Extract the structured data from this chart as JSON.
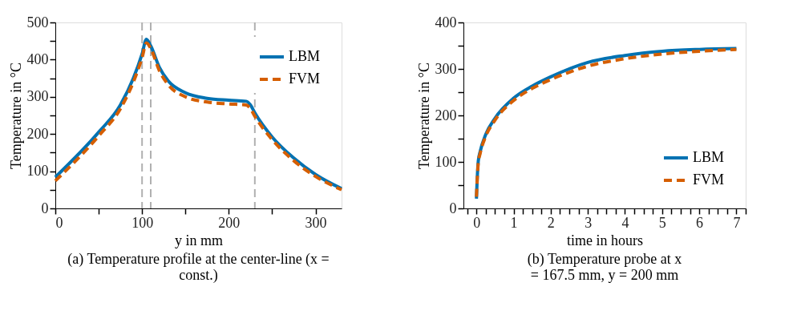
{
  "chart_data": [
    {
      "type": "line",
      "title": "(a) Temperature profile at the center-line (x = const.)",
      "xlabel": "y in mm",
      "ylabel": "Temperature in °C",
      "xlim": [
        0,
        330
      ],
      "ylim": [
        0,
        500
      ],
      "xticks": [
        0,
        {
          "value": 50,
          "label": null
        },
        100,
        {
          "value": 150,
          "label": null
        },
        200,
        {
          "value": 250,
          "label": null
        },
        300
      ],
      "yticks": [
        0,
        {
          "value": 50,
          "label": null
        },
        100,
        {
          "value": 150,
          "label": null
        },
        200,
        {
          "value": 250,
          "label": null
        },
        300,
        {
          "value": 350,
          "label": null
        },
        400,
        {
          "value": 450,
          "label": null
        },
        500
      ],
      "legend": "top right",
      "grid": false,
      "ref_lines": [
        {
          "axis": "x",
          "value": 100,
          "color": "#b0b0b0",
          "line_style": "dashed"
        },
        {
          "axis": "x",
          "value": 110,
          "color": "#b0b0b0",
          "line_style": "dashed"
        },
        {
          "axis": "x",
          "value": 230,
          "color": "#b0b0b0",
          "line_style": "dashed"
        }
      ],
      "series": [
        {
          "name": "LBM",
          "color": "#0072b2",
          "line_style": "solid",
          "x": [
            0,
            50,
            75,
            90,
            100,
            105,
            110,
            120,
            130,
            150,
            175,
            200,
            220,
            225,
            230,
            250,
            275,
            300,
            330
          ],
          "values": [
            84,
            205,
            278,
            350,
            415,
            455,
            437,
            379,
            343,
            311,
            296,
            291,
            288,
            278,
            257,
            192,
            135,
            91,
            53
          ]
        },
        {
          "name": "FVM",
          "color": "#d55e00",
          "line_style": "dashed",
          "x": [
            0,
            50,
            75,
            90,
            100,
            105,
            110,
            120,
            130,
            150,
            175,
            200,
            220,
            225,
            230,
            250,
            275,
            300,
            330
          ],
          "values": [
            74,
            195,
            268,
            340,
            405,
            445,
            430,
            370,
            333,
            300,
            286,
            281,
            278,
            268,
            248,
            185,
            128,
            86,
            50
          ]
        }
      ]
    },
    {
      "type": "line",
      "title": "(b) Temperature probe at x = 167.5 mm, y = 200 mm",
      "xlabel": "time in hours",
      "ylabel": "Temperature in °C",
      "xlim": [
        -0.35,
        7.25
      ],
      "ylim": [
        0,
        400
      ],
      "xticks": [
        {
          "value": -0.25,
          "label": null
        },
        0,
        {
          "value": 0.25,
          "label": null
        },
        {
          "value": 0.5,
          "label": null
        },
        {
          "value": 0.75,
          "label": null
        },
        1,
        {
          "value": 1.25,
          "label": null
        },
        {
          "value": 1.5,
          "label": null
        },
        {
          "value": 1.75,
          "label": null
        },
        2,
        {
          "value": 2.25,
          "label": null
        },
        {
          "value": 2.5,
          "label": null
        },
        {
          "value": 2.75,
          "label": null
        },
        3,
        {
          "value": 3.25,
          "label": null
        },
        {
          "value": 3.5,
          "label": null
        },
        {
          "value": 3.75,
          "label": null
        },
        4,
        {
          "value": 4.25,
          "label": null
        },
        {
          "value": 4.5,
          "label": null
        },
        {
          "value": 4.75,
          "label": null
        },
        5,
        {
          "value": 5.25,
          "label": null
        },
        {
          "value": 5.5,
          "label": null
        },
        {
          "value": 5.75,
          "label": null
        },
        6,
        {
          "value": 6.25,
          "label": null
        },
        {
          "value": 6.5,
          "label": null
        },
        {
          "value": 6.75,
          "label": null
        },
        7,
        {
          "value": 7.25,
          "label": null
        }
      ],
      "yticks": [
        0,
        {
          "value": 50,
          "label": null
        },
        100,
        {
          "value": 150,
          "label": null
        },
        200,
        {
          "value": 250,
          "label": null
        },
        300,
        {
          "value": 350,
          "label": null
        },
        400
      ],
      "legend": "bottom right",
      "grid": false,
      "series": [
        {
          "name": "LBM",
          "color": "#0072b2",
          "line_style": "solid",
          "x": [
            0,
            0.02,
            0.05,
            0.1,
            0.25,
            0.5,
            1,
            1.5,
            2,
            3,
            4,
            5,
            6,
            7
          ],
          "values": [
            21,
            62,
            102,
            122,
            159,
            194,
            237,
            263,
            283,
            314,
            329,
            338,
            342,
            344
          ]
        },
        {
          "name": "FVM",
          "color": "#d55e00",
          "line_style": "dashed",
          "x": [
            0,
            0.02,
            0.05,
            0.1,
            0.25,
            0.5,
            1,
            1.5,
            2,
            3,
            4,
            5,
            6,
            7
          ],
          "values": [
            25,
            60,
            98,
            118,
            155,
            190,
            232,
            258,
            277,
            306,
            322,
            332,
            338,
            342
          ]
        }
      ]
    }
  ]
}
